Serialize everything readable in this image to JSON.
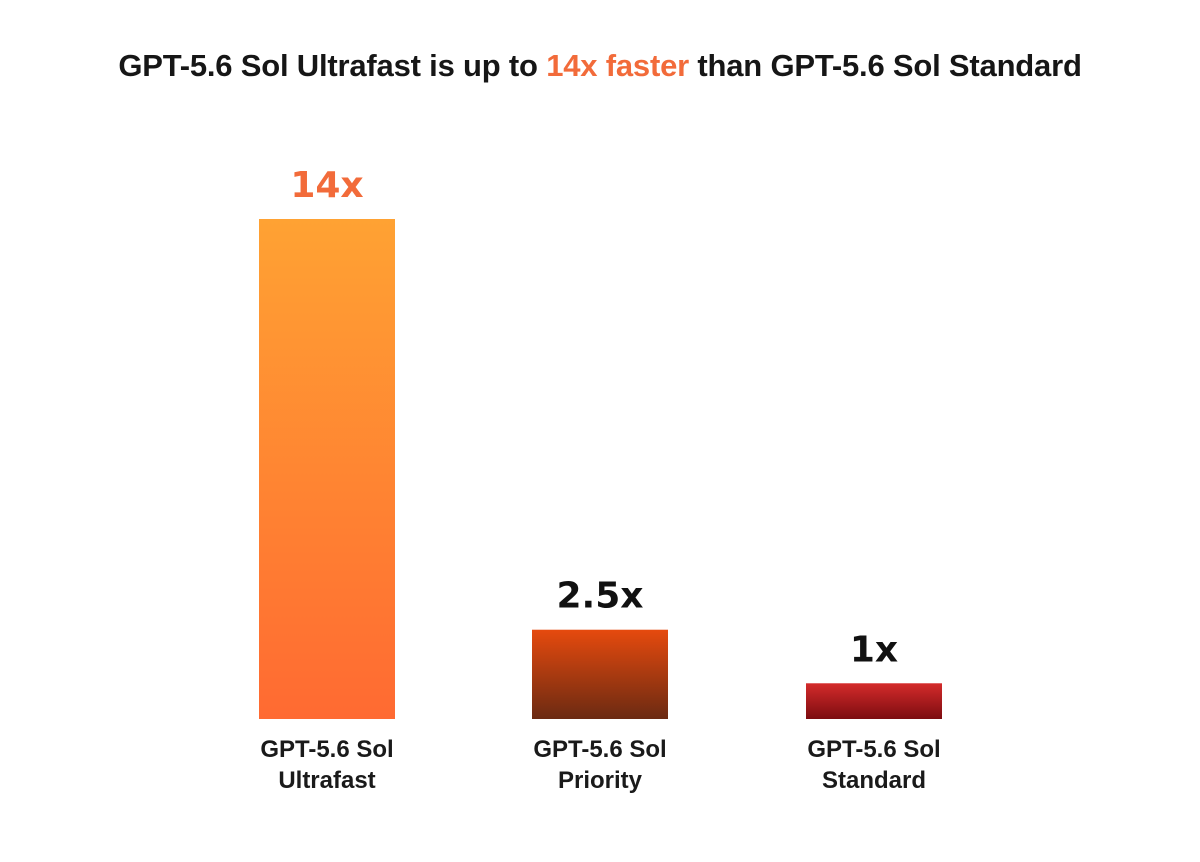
{
  "title": {
    "prefix": "GPT-5.6 Sol Ultrafast is up to ",
    "highlight": "14x faster",
    "suffix": " than GPT-5.6 Sol Standard"
  },
  "colors": {
    "highlight": "#f26b3a",
    "value_label_primary": "#f26b3a",
    "value_label_default": "#111111"
  },
  "chart_data": {
    "type": "bar",
    "title": "GPT-5.6 Sol Ultrafast is up to 14x faster than GPT-5.6 Sol Standard",
    "categories": [
      [
        "GPT-5.6 Sol",
        "Ultrafast"
      ],
      [
        "GPT-5.6 Sol",
        "Priority"
      ],
      [
        "GPT-5.6 Sol",
        "Standard"
      ]
    ],
    "values": [
      14,
      2.5,
      1
    ],
    "value_labels": [
      "14x",
      "2.5x",
      "1x"
    ],
    "bar_gradients": [
      [
        "#ffa233",
        "#ff6a32"
      ],
      [
        "#e64a0e",
        "#6b2a12"
      ],
      [
        "#d42b2b",
        "#7c0c10"
      ]
    ],
    "xlabel": "",
    "ylabel": "",
    "ylim": [
      0,
      14
    ],
    "grid": false,
    "legend": "none"
  }
}
